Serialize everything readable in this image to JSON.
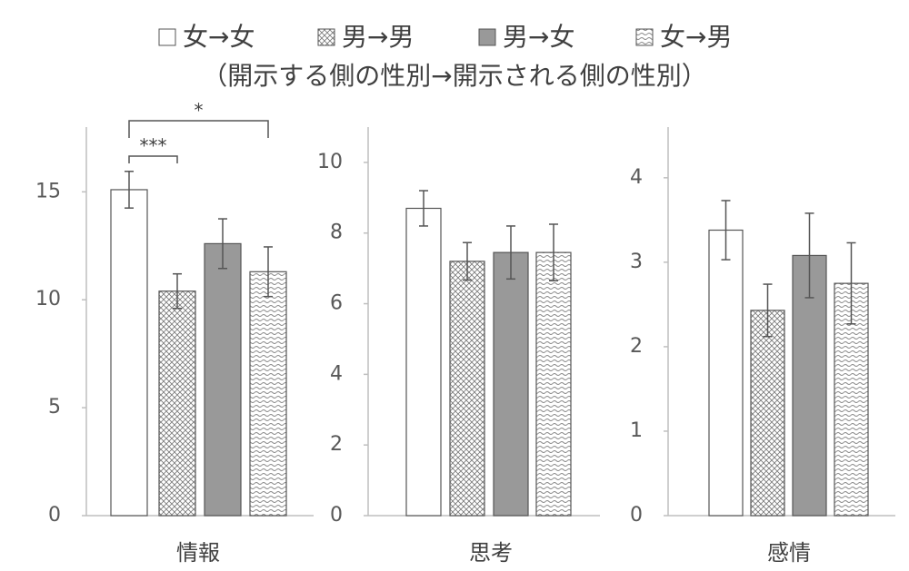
{
  "legend": {
    "items": [
      {
        "name": "女→女",
        "fill": "white"
      },
      {
        "name": "男→男",
        "fill": "crosshatch"
      },
      {
        "name": "男→女",
        "fill": "#999999"
      },
      {
        "name": "女→男",
        "fill": "wave"
      }
    ],
    "subtitle": "（開示する側の性別→開示される側の性別）"
  },
  "chart_data": [
    {
      "type": "bar",
      "categories": [
        "情報"
      ],
      "ylim": [
        0,
        18
      ],
      "yticks": [
        0,
        5,
        10,
        15
      ],
      "series": [
        {
          "values": [
            15.1
          ],
          "errors": [
            0.85
          ]
        },
        {
          "values": [
            10.4
          ],
          "errors": [
            0.8
          ]
        },
        {
          "values": [
            12.6
          ],
          "errors": [
            1.15
          ]
        },
        {
          "values": [
            11.3
          ],
          "errors": [
            1.15
          ]
        }
      ],
      "annotations": [
        "***",
        "*"
      ]
    },
    {
      "type": "bar",
      "categories": [
        "思考"
      ],
      "ylim": [
        0,
        11
      ],
      "yticks": [
        0,
        2,
        4,
        6,
        8,
        10
      ],
      "series": [
        {
          "values": [
            8.7
          ],
          "errors": [
            0.5
          ]
        },
        {
          "values": [
            7.2
          ],
          "errors": [
            0.53
          ]
        },
        {
          "values": [
            7.45
          ],
          "errors": [
            0.75
          ]
        },
        {
          "values": [
            7.45
          ],
          "errors": [
            0.8
          ]
        }
      ]
    },
    {
      "type": "bar",
      "categories": [
        "感情"
      ],
      "ylim": [
        0,
        4.6
      ],
      "yticks": [
        0,
        1,
        2,
        3,
        4
      ],
      "series": [
        {
          "values": [
            3.38
          ],
          "errors": [
            0.35
          ]
        },
        {
          "values": [
            2.43
          ],
          "errors": [
            0.31
          ]
        },
        {
          "values": [
            3.08
          ],
          "errors": [
            0.5
          ]
        },
        {
          "values": [
            2.75
          ],
          "errors": [
            0.48
          ]
        }
      ]
    }
  ]
}
